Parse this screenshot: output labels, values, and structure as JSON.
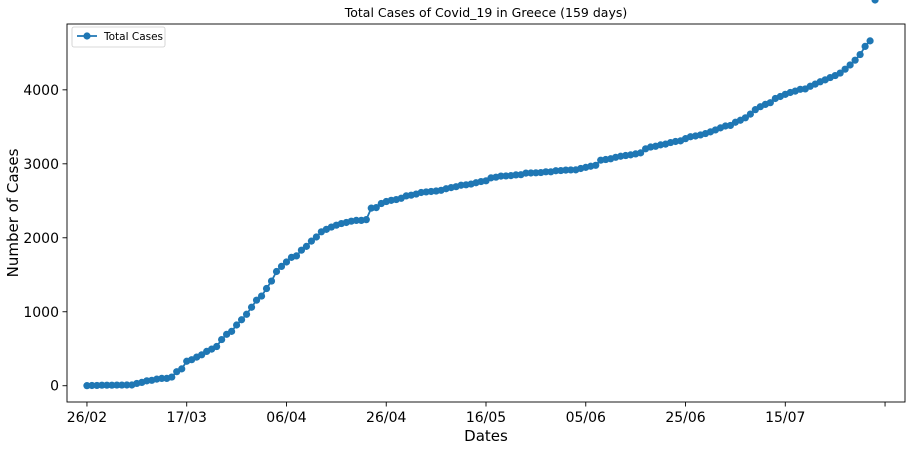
{
  "chart_data": {
    "type": "line",
    "title": "Total Cases of Covid_19 in Greece (159 days)",
    "xlabel": "Dates",
    "ylabel": "Number of Cases",
    "x_tick_labels": [
      "26/02",
      "17/03",
      "06/04",
      "26/04",
      "16/05",
      "05/06",
      "25/06",
      "15/07",
      ""
    ],
    "x_tick_day_index": [
      0,
      20,
      40,
      60,
      80,
      100,
      120,
      140,
      160
    ],
    "y_ticks": [
      0,
      1000,
      2000,
      3000,
      4000
    ],
    "ylim": [
      -220,
      4890
    ],
    "xlim": [
      -4,
      164
    ],
    "legend": "top-left",
    "grid": false,
    "color": "#1f77b4",
    "series": [
      {
        "name": "Total Cases",
        "x_day_index": [
          0,
          1,
          2,
          3,
          4,
          5,
          6,
          7,
          8,
          9,
          10,
          11,
          12,
          13,
          14,
          15,
          16,
          17,
          18,
          19,
          20,
          21,
          22,
          23,
          24,
          25,
          26,
          27,
          28,
          29,
          30,
          31,
          32,
          33,
          34,
          35,
          36,
          37,
          38,
          39,
          40,
          41,
          42,
          43,
          44,
          45,
          46,
          47,
          48,
          49,
          50,
          51,
          52,
          53,
          54,
          55,
          56,
          57,
          58,
          59,
          60,
          61,
          62,
          63,
          64,
          65,
          66,
          67,
          68,
          69,
          70,
          71,
          72,
          73,
          74,
          75,
          76,
          77,
          78,
          79,
          80,
          81,
          82,
          83,
          84,
          85,
          86,
          87,
          88,
          89,
          90,
          91,
          92,
          93,
          94,
          95,
          96,
          97,
          98,
          99,
          100,
          101,
          102,
          103,
          104,
          105,
          106,
          107,
          108,
          109,
          110,
          111,
          112,
          113,
          114,
          115,
          116,
          117,
          118,
          119,
          120,
          121,
          122,
          123,
          124,
          125,
          126,
          127,
          128,
          129,
          130,
          131,
          132,
          133,
          134,
          135,
          136,
          137,
          138,
          139,
          140,
          141,
          142,
          143,
          144,
          145,
          146,
          147,
          148,
          149,
          150,
          151,
          152,
          153,
          154,
          155,
          156,
          157,
          158
        ],
        "values": [
          1,
          3,
          4,
          7,
          7,
          7,
          9,
          9,
          10,
          10,
          31,
          45,
          66,
          73,
          89,
          99,
          99,
          117,
          190,
          228,
          331,
          352,
          387,
          418,
          464,
          495,
          530,
          624,
          695,
          735,
          821,
          892,
          966,
          1061,
          1156,
          1212,
          1314,
          1415,
          1544,
          1613,
          1673,
          1735,
          1755,
          1832,
          1884,
          1955,
          2011,
          2081,
          2114,
          2145,
          2170,
          2192,
          2207,
          2224,
          2235,
          2235,
          2245,
          2401,
          2408,
          2463,
          2490,
          2506,
          2517,
          2534,
          2566,
          2576,
          2591,
          2612,
          2620,
          2626,
          2632,
          2642,
          2663,
          2678,
          2691,
          2710,
          2716,
          2726,
          2744,
          2760,
          2770,
          2810,
          2819,
          2834,
          2836,
          2840,
          2850,
          2853,
          2874,
          2876,
          2878,
          2882,
          2892,
          2892,
          2906,
          2909,
          2915,
          2917,
          2918,
          2937,
          2952,
          2967,
          2980,
          3049,
          3058,
          3068,
          3088,
          3102,
          3112,
          3121,
          3134,
          3148,
          3203,
          3227,
          3237,
          3256,
          3266,
          3287,
          3302,
          3310,
          3340,
          3366,
          3376,
          3390,
          3409,
          3432,
          3458,
          3486,
          3511,
          3519,
          3562,
          3589,
          3622,
          3672,
          3732,
          3772,
          3803,
          3826,
          3883,
          3910,
          3939,
          3964,
          3983,
          4007,
          4012,
          4048,
          4077,
          4109,
          4135,
          4166,
          4193,
          4227,
          4279,
          4336,
          4401,
          4477,
          4587,
          4662
        ]
      }
    ]
  }
}
